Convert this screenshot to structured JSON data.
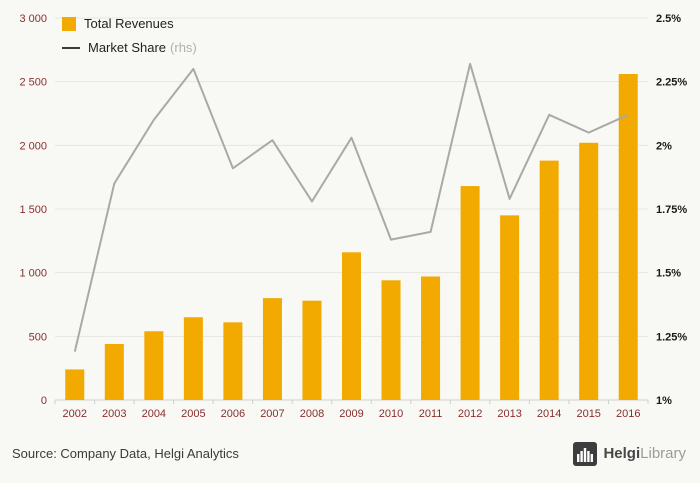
{
  "chart_data": {
    "type": "bar+line",
    "title": "",
    "categories": [
      "2002",
      "2003",
      "2004",
      "2005",
      "2006",
      "2007",
      "2008",
      "2009",
      "2010",
      "2011",
      "2012",
      "2013",
      "2014",
      "2015",
      "2016"
    ],
    "series": [
      {
        "name": "Total Revenues",
        "type": "bar",
        "axis": "left",
        "values": [
          240,
          440,
          540,
          650,
          610,
          800,
          780,
          1160,
          940,
          970,
          1680,
          1450,
          1880,
          2020,
          2560
        ]
      },
      {
        "name": "Market Share",
        "name_suffix": "(rhs)",
        "type": "line",
        "axis": "right",
        "values": [
          1.19,
          1.85,
          2.1,
          2.3,
          1.91,
          2.02,
          1.78,
          2.03,
          1.63,
          1.66,
          2.32,
          1.79,
          2.12,
          2.05,
          2.12
        ]
      }
    ],
    "left_axis": {
      "min": 0,
      "max": 3000,
      "step": 500,
      "tick_labels": [
        "0",
        "500",
        "1 000",
        "1 500",
        "2 000",
        "2 500",
        "3 000"
      ]
    },
    "right_axis": {
      "min": 1,
      "max": 2.5,
      "step": 0.25,
      "tick_labels": [
        "1%",
        "1.25%",
        "1.5%",
        "1.75%",
        "2%",
        "2.25%",
        "2.5%"
      ]
    },
    "grid": true,
    "legend_position": "top-left"
  },
  "legend": {
    "revenues_label": "Total Revenues",
    "market_share_label": "Market Share",
    "market_share_suffix": "(rhs)"
  },
  "footer": {
    "source": "Source: Company Data, Helgi Analytics",
    "logo_primary": "Helgi",
    "logo_secondary": "Library"
  },
  "colors": {
    "bar": "#F2A900",
    "line": "#a9a9a9",
    "legend_line": "#3a3a3a",
    "grid": "#e6e6e2",
    "baseline": "#cfcfcc",
    "axis_label_left": "#8a2e2e",
    "axis_label_right": "#1a1a1a",
    "background": "#f8f8f5"
  }
}
